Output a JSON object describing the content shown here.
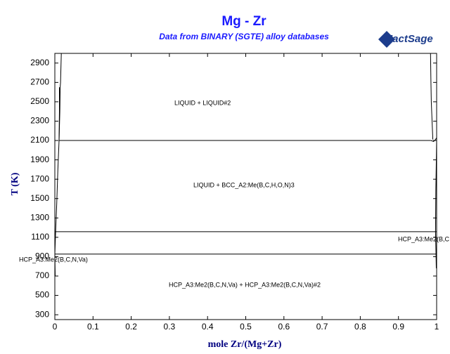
{
  "chart_data": {
    "type": "line",
    "title": "Mg - Zr",
    "subtitle": "Data from BINARY (SGTE) alloy databases",
    "logo": "FactSage",
    "x_label": "mole Zr/(Mg+Zr)",
    "y_label": "T (K)",
    "xlim": [
      0,
      1
    ],
    "ylim": [
      250,
      3000
    ],
    "xticks": [
      0,
      0.1,
      0.2,
      0.3,
      0.4,
      0.5,
      0.6,
      0.7,
      0.8,
      0.9,
      1
    ],
    "yticks": [
      300,
      500,
      700,
      900,
      1100,
      1300,
      1500,
      1700,
      1900,
      2100,
      2300,
      2500,
      2700,
      2900
    ],
    "color": "#000000",
    "lines": [
      {
        "x": [
          0,
          0.002,
          0.005,
          0.008,
          0.011,
          0.013,
          0.014,
          0.015,
          0.017
        ],
        "y": [
          926,
          1158,
          1450,
          1800,
          2100,
          2400,
          2650,
          2700,
          3000
        ]
      },
      {
        "x": [
          0.011,
          0.012,
          0.012
        ],
        "y": [
          2100,
          2400,
          2650
        ]
      },
      {
        "x": [
          0.012,
          0.985
        ],
        "y": [
          2100,
          2100
        ]
      },
      {
        "x": [
          0,
          1
        ],
        "y": [
          1158,
          1158
        ]
      },
      {
        "x": [
          0,
          1
        ],
        "y": [
          926,
          926
        ]
      },
      {
        "x": [
          0.984,
          0.985,
          0.986,
          0.988,
          0.99
        ],
        "y": [
          3000,
          2700,
          2500,
          2300,
          2110
        ]
      },
      {
        "x": [
          0.985,
          0.992,
          0.997,
          1
        ],
        "y": [
          2100,
          2090,
          2110,
          2128
        ]
      },
      {
        "x": [
          0.997,
          0.998,
          1
        ],
        "y": [
          1158,
          1600,
          2100
        ]
      },
      {
        "x": [
          0.997,
          0.998,
          0.999
        ],
        "y": [
          1158,
          1000,
          780
        ]
      },
      {
        "x": [
          0,
          0.001
        ],
        "y": [
          926,
          700
        ]
      }
    ],
    "annotations": [
      "LIQUID + LIQUID#2",
      "LIQUID + BCC_A2:Me(B,C,H,O,N)3",
      "HCP_A3:Me2(B,C,N,Va)",
      "HCP_A3:Me2(B,C",
      "HCP_A3:Me2(B,C,N,Va) + HCP_A3:Me2(B,C,N,Va)#2"
    ]
  }
}
